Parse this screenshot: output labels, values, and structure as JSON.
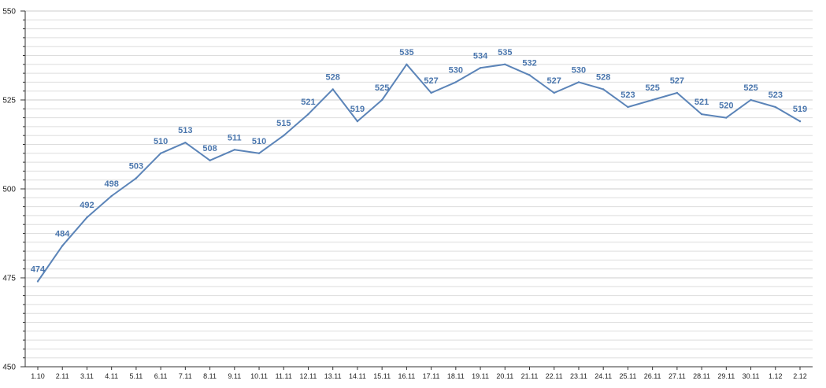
{
  "chart_data": {
    "type": "line",
    "title": "",
    "xlabel": "",
    "ylabel": "",
    "categories": [
      "1.10",
      "2.11",
      "3.11",
      "4.11",
      "5.11",
      "6.11",
      "7.11",
      "8.11",
      "9.11",
      "10.11",
      "11.11",
      "12.11",
      "13.11",
      "14.11",
      "15.11",
      "16.11",
      "17.11",
      "18.11",
      "19.11",
      "20.11",
      "21.11",
      "22.11",
      "23.11",
      "24.11",
      "25.11",
      "26.11",
      "27.11",
      "28.11",
      "29.11",
      "30.11",
      "1.12",
      "2.12"
    ],
    "series": [
      {
        "values": [
          474,
          484,
          492,
          498,
          503,
          510,
          513,
          508,
          511,
          510,
          515,
          521,
          528,
          519,
          525,
          535,
          527,
          530,
          534,
          535,
          532,
          527,
          530,
          528,
          523,
          525,
          527,
          521,
          520,
          525,
          523,
          519
        ]
      }
    ],
    "ylim": [
      450,
      550
    ],
    "yticks": [
      450,
      475,
      500,
      525,
      550
    ],
    "grid": true,
    "legend": "none",
    "colors": {
      "line": "#5b84b8",
      "label": "#4a76ad",
      "grid": "#dddddd",
      "axis": "#333333"
    }
  }
}
